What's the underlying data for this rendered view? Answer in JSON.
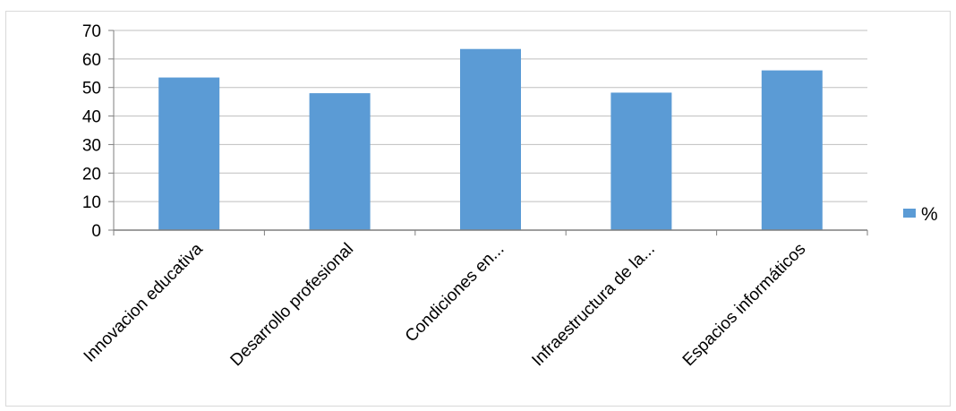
{
  "chart_data": {
    "type": "bar",
    "categories": [
      "Innovacion educativa",
      "Desarrollo profesional",
      "Condiciones en...",
      "Infraestructura de la...",
      "Espacios informáticos"
    ],
    "series": [
      {
        "name": "%",
        "values": [
          53.5,
          48,
          63.5,
          48.2,
          56
        ]
      }
    ],
    "yticks": [
      "0",
      "10",
      "20",
      "30",
      "40",
      "50",
      "60",
      "70"
    ],
    "ylim": [
      0,
      70
    ],
    "grid": true,
    "legend": "right",
    "colors": {
      "bar": "#5b9bd5",
      "grid": "#bfbfbf",
      "axis": "#7f7f7f"
    }
  }
}
